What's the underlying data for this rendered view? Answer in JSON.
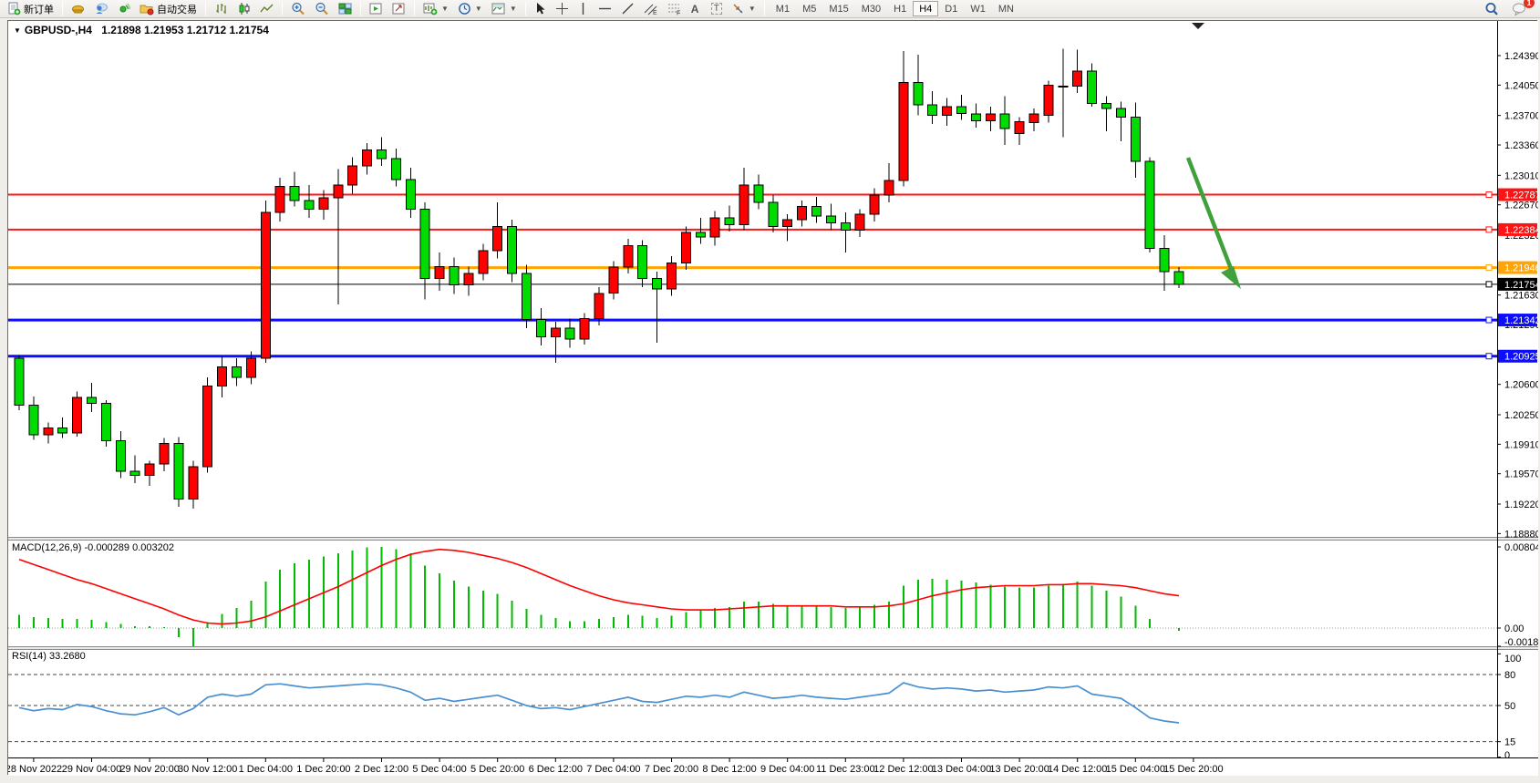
{
  "toolbar": {
    "new_order_label": "新订单",
    "autotrade_label": "自动交易",
    "icons": [
      "new-order-icon",
      "cap-icon",
      "community-icon",
      "broadcast-icon",
      "folder-icon",
      "ohlc-bars-icon",
      "candlestick-icon",
      "line-chart-icon",
      "zoom-in-icon",
      "zoom-out-icon",
      "tile-windows-icon",
      "indicator-list-icon",
      "data-window-icon",
      "new-chart-icon",
      "periods-clock-icon",
      "template-icon",
      "cursor-icon",
      "crosshair-icon",
      "vertical-line-icon",
      "horizontal-line-icon",
      "trendline-icon",
      "channel-icon",
      "fibonacci-icon",
      "text-icon",
      "text-label-icon",
      "arrows-icon",
      "search-icon",
      "chat-icon"
    ],
    "timeframes": [
      "M1",
      "M5",
      "M15",
      "M30",
      "H1",
      "H4",
      "D1",
      "W1",
      "MN"
    ],
    "active_timeframe": "H4",
    "notification_count": "1"
  },
  "chart": {
    "title": {
      "symbol": "GBPUSD-,H4",
      "open": "1.21898",
      "high": "1.21953",
      "low": "1.21712",
      "close": "1.21754"
    },
    "price_axis_ticks": [
      {
        "price": 1.2439,
        "label": "1.24390"
      },
      {
        "price": 1.2405,
        "label": "1.24050"
      },
      {
        "price": 1.237,
        "label": "1.23700"
      },
      {
        "price": 1.2336,
        "label": "1.23360"
      },
      {
        "price": 1.2301,
        "label": "1.23010"
      },
      {
        "price": 1.2267,
        "label": "1.22670"
      },
      {
        "price": 1.2232,
        "label": "1.22320"
      },
      {
        "price": 1.2163,
        "label": "1.21630"
      },
      {
        "price": 1.2129,
        "label": "1.21290"
      },
      {
        "price": 1.206,
        "label": "1.20600"
      },
      {
        "price": 1.2025,
        "label": "1.20250"
      },
      {
        "price": 1.1991,
        "label": "1.19910"
      },
      {
        "price": 1.1957,
        "label": "1.19570"
      },
      {
        "price": 1.1922,
        "label": "1.19220"
      },
      {
        "price": 1.1888,
        "label": "1.18880"
      }
    ],
    "hlines": [
      {
        "price": 1.22787,
        "label": "1.22787",
        "color": "#fe1414",
        "width": 2
      },
      {
        "price": 1.22384,
        "label": "1.22384",
        "color": "#fe1414",
        "width": 2
      },
      {
        "price": 1.21946,
        "label": "1.21946",
        "color": "#ffa400",
        "width": 3
      },
      {
        "price": 1.21754,
        "label": "1.21754",
        "color": "#000000",
        "width": 1
      },
      {
        "price": 1.21342,
        "label": "1.21342",
        "color": "#0d0dff",
        "width": 3
      },
      {
        "price": 1.20925,
        "label": "1.20925",
        "color": "#0d0dff",
        "width": 3
      }
    ],
    "time_axis_labels": [
      "28 Nov 2022",
      "29 Nov 04:00",
      "29 Nov 20:00",
      "30 Nov 12:00",
      "1 Dec 04:00",
      "1 Dec 20:00",
      "2 Dec 12:00",
      "5 Dec 04:00",
      "5 Dec 20:00",
      "6 Dec 12:00",
      "7 Dec 04:00",
      "7 Dec 20:00",
      "8 Dec 12:00",
      "9 Dec 04:00",
      "11 Dec 23:00",
      "12 Dec 12:00",
      "13 Dec 04:00",
      "13 Dec 20:00",
      "14 Dec 12:00",
      "15 Dec 04:00",
      "15 Dec 20:00"
    ],
    "arrow_color": "#3fa03c"
  },
  "chart_data": {
    "type": "candlestick",
    "title": "GBPUSD-,H4",
    "up_color": "#fe0000",
    "down_color": "#00dc00",
    "candles": [
      [
        1.209,
        1.2094,
        1.203,
        1.2036
      ],
      [
        1.2036,
        1.2046,
        1.1996,
        1.2002
      ],
      [
        1.2002,
        1.2016,
        1.1992,
        1.201
      ],
      [
        1.201,
        1.2022,
        1.1998,
        1.2004
      ],
      [
        1.2004,
        1.2052,
        1.2,
        1.2045
      ],
      [
        1.2045,
        1.2062,
        1.2028,
        1.2038
      ],
      [
        1.2038,
        1.2042,
        1.1988,
        1.1995
      ],
      [
        1.1995,
        1.2006,
        1.1952,
        1.196
      ],
      [
        1.196,
        1.1978,
        1.1946,
        1.1955
      ],
      [
        1.1955,
        1.1972,
        1.1943,
        1.1968
      ],
      [
        1.1968,
        1.1998,
        1.196,
        1.1992
      ],
      [
        1.1992,
        1.1999,
        1.1919,
        1.1928
      ],
      [
        1.1928,
        1.1972,
        1.1917,
        1.1965
      ],
      [
        1.1965,
        1.2068,
        1.1958,
        1.2058
      ],
      [
        1.2058,
        1.2092,
        1.2045,
        1.208
      ],
      [
        1.208,
        1.209,
        1.2058,
        1.2068
      ],
      [
        1.2068,
        1.2098,
        1.206,
        1.209
      ],
      [
        1.209,
        1.2272,
        1.2085,
        1.2258
      ],
      [
        1.2258,
        1.2298,
        1.2248,
        1.2288
      ],
      [
        1.2288,
        1.2305,
        1.2265,
        1.2272
      ],
      [
        1.2272,
        1.229,
        1.2252,
        1.2262
      ],
      [
        1.2262,
        1.2284,
        1.225,
        1.2275
      ],
      [
        1.2275,
        1.2308,
        1.2152,
        1.229
      ],
      [
        1.229,
        1.2322,
        1.228,
        1.2312
      ],
      [
        1.2312,
        1.2338,
        1.2302,
        1.233
      ],
      [
        1.233,
        1.2345,
        1.2312,
        1.232
      ],
      [
        1.232,
        1.2332,
        1.2288,
        1.2296
      ],
      [
        1.2296,
        1.231,
        1.2252,
        1.2262
      ],
      [
        1.2262,
        1.227,
        1.2158,
        1.2182
      ],
      [
        1.2182,
        1.2212,
        1.2168,
        1.2196
      ],
      [
        1.2196,
        1.2206,
        1.2164,
        1.2175
      ],
      [
        1.2175,
        1.2196,
        1.2162,
        1.2188
      ],
      [
        1.2188,
        1.2222,
        1.218,
        1.2214
      ],
      [
        1.2214,
        1.227,
        1.2205,
        1.2242
      ],
      [
        1.2242,
        1.225,
        1.2178,
        1.2188
      ],
      [
        1.2188,
        1.2198,
        1.2125,
        1.2135
      ],
      [
        1.2135,
        1.2148,
        1.2105,
        1.2115
      ],
      [
        1.2115,
        1.2132,
        1.2085,
        1.2125
      ],
      [
        1.2125,
        1.2136,
        1.2102,
        1.2112
      ],
      [
        1.2112,
        1.2142,
        1.2106,
        1.2136
      ],
      [
        1.2136,
        1.2172,
        1.2128,
        1.2165
      ],
      [
        1.2165,
        1.2202,
        1.2158,
        1.2195
      ],
      [
        1.2195,
        1.2228,
        1.2188,
        1.222
      ],
      [
        1.222,
        1.2226,
        1.2172,
        1.2182
      ],
      [
        1.2182,
        1.219,
        1.2108,
        1.217
      ],
      [
        1.217,
        1.2208,
        1.2162,
        1.22
      ],
      [
        1.22,
        1.2242,
        1.2192,
        1.2235
      ],
      [
        1.2235,
        1.2252,
        1.2222,
        1.223
      ],
      [
        1.223,
        1.226,
        1.222,
        1.2252
      ],
      [
        1.2252,
        1.2266,
        1.2236,
        1.2244
      ],
      [
        1.2244,
        1.231,
        1.2238,
        1.229
      ],
      [
        1.229,
        1.2302,
        1.2262,
        1.227
      ],
      [
        1.227,
        1.2278,
        1.2235,
        1.2242
      ],
      [
        1.2242,
        1.2256,
        1.2225,
        1.225
      ],
      [
        1.225,
        1.2272,
        1.2242,
        1.2265
      ],
      [
        1.2265,
        1.2276,
        1.2246,
        1.2254
      ],
      [
        1.2254,
        1.2268,
        1.2238,
        1.2246
      ],
      [
        1.2246,
        1.2258,
        1.2212,
        1.2238
      ],
      [
        1.2238,
        1.2262,
        1.223,
        1.2256
      ],
      [
        1.2256,
        1.2286,
        1.2248,
        1.2278
      ],
      [
        1.2278,
        1.2315,
        1.227,
        1.2295
      ],
      [
        1.2295,
        1.2444,
        1.2288,
        1.2408
      ],
      [
        1.2408,
        1.244,
        1.237,
        1.2382
      ],
      [
        1.2382,
        1.2398,
        1.236,
        1.237
      ],
      [
        1.237,
        1.239,
        1.2358,
        1.238
      ],
      [
        1.238,
        1.2394,
        1.2365,
        1.2372
      ],
      [
        1.2372,
        1.2384,
        1.2356,
        1.2364
      ],
      [
        1.2364,
        1.238,
        1.2352,
        1.2372
      ],
      [
        1.2372,
        1.2392,
        1.2336,
        1.2355
      ],
      [
        1.2349,
        1.2368,
        1.2336,
        1.2363
      ],
      [
        1.2362,
        1.2378,
        1.2352,
        1.2372
      ],
      [
        1.237,
        1.241,
        1.2362,
        1.2405
      ],
      [
        1.2403,
        1.2447,
        1.2345,
        1.2404
      ],
      [
        1.2404,
        1.2446,
        1.2396,
        1.2421
      ],
      [
        1.2421,
        1.243,
        1.238,
        1.2384
      ],
      [
        1.2384,
        1.2392,
        1.2352,
        1.2378
      ],
      [
        1.2378,
        1.2386,
        1.234,
        1.2368
      ],
      [
        1.2368,
        1.2385,
        1.2298,
        1.2317
      ],
      [
        1.2317,
        1.2322,
        1.2212,
        1.2217
      ],
      [
        1.2217,
        1.2232,
        1.2168,
        1.21898
      ],
      [
        1.21898,
        1.21953,
        1.21712,
        1.21754
      ]
    ],
    "macd": {
      "label": "MACD(12,26,9)",
      "main_value": "-0.000289",
      "signal_value": "0.003202",
      "axis_labels": [
        {
          "v": 0.008043,
          "label": "0.008043"
        },
        {
          "v": 0,
          "label": "0.00"
        },
        {
          "v": -0.001807,
          "label": "-0.001807"
        }
      ],
      "histogram": [
        0.0013,
        0.0011,
        0.001,
        0.0009,
        0.0009,
        0.0008,
        0.0006,
        0.0004,
        0.0002,
        0.0002,
        0.0001,
        -0.0009,
        -0.001807,
        0.0006,
        0.0014,
        0.002,
        0.0027,
        0.0046,
        0.0058,
        0.0064,
        0.0068,
        0.0071,
        0.0074,
        0.0077,
        0.008,
        0.008043,
        0.0078,
        0.0074,
        0.0062,
        0.0054,
        0.0047,
        0.0041,
        0.0037,
        0.0034,
        0.0027,
        0.0019,
        0.0013,
        0.001,
        0.0007,
        0.0007,
        0.0009,
        0.0011,
        0.0013,
        0.0012,
        0.001,
        0.0012,
        0.0016,
        0.0018,
        0.002,
        0.0021,
        0.0026,
        0.0026,
        0.0024,
        0.0022,
        0.0022,
        0.0022,
        0.0021,
        0.002,
        0.0021,
        0.0023,
        0.0026,
        0.0042,
        0.0048,
        0.0049,
        0.0048,
        0.0047,
        0.0045,
        0.0043,
        0.0041,
        0.004,
        0.004,
        0.0042,
        0.0044,
        0.0046,
        0.0042,
        0.0037,
        0.0031,
        0.0022,
        0.0009,
        0.0,
        -0.000289
      ],
      "signal": [
        0.0068,
        0.0063,
        0.0058,
        0.0053,
        0.0048,
        0.0044,
        0.0039,
        0.0034,
        0.0029,
        0.0024,
        0.0019,
        0.0013,
        0.0008,
        0.0005,
        0.0004,
        0.0005,
        0.0007,
        0.0011,
        0.0017,
        0.0023,
        0.0029,
        0.0035,
        0.0041,
        0.0048,
        0.0055,
        0.0062,
        0.0068,
        0.0073,
        0.0076,
        0.0078,
        0.0077,
        0.0075,
        0.0072,
        0.0069,
        0.0065,
        0.006,
        0.0054,
        0.0048,
        0.0042,
        0.0037,
        0.0032,
        0.0028,
        0.0025,
        0.0023,
        0.0021,
        0.0019,
        0.0018,
        0.0018,
        0.0018,
        0.0019,
        0.002,
        0.0021,
        0.0022,
        0.0022,
        0.0022,
        0.0022,
        0.0022,
        0.0021,
        0.0021,
        0.0021,
        0.0022,
        0.0024,
        0.0028,
        0.0032,
        0.0035,
        0.0038,
        0.004,
        0.0041,
        0.0042,
        0.0042,
        0.0042,
        0.0043,
        0.0043,
        0.0044,
        0.0044,
        0.0043,
        0.0042,
        0.004,
        0.0037,
        0.0034,
        0.003202
      ],
      "histogram_color": "#00bb00",
      "signal_color": "#ff0000"
    },
    "rsi": {
      "label": "RSI(14)",
      "value": "33.2680",
      "axis_labels": [
        {
          "v": 100,
          "label": "100"
        },
        {
          "v": 80,
          "label": "80"
        },
        {
          "v": 50,
          "label": "50"
        },
        {
          "v": 15,
          "label": "15"
        },
        {
          "v": 0,
          "label": "0"
        }
      ],
      "levels": [
        80,
        50,
        15
      ],
      "values": [
        48,
        45,
        47,
        46,
        51,
        49,
        45,
        42,
        41,
        44,
        48,
        41,
        47,
        58,
        61,
        59,
        61,
        70,
        71,
        69,
        67,
        68,
        69,
        70,
        71,
        70,
        67,
        63,
        55,
        57,
        54,
        56,
        58,
        60,
        55,
        50,
        47,
        48,
        46,
        49,
        52,
        55,
        58,
        54,
        53,
        56,
        59,
        58,
        60,
        58,
        63,
        60,
        57,
        58,
        60,
        58,
        57,
        56,
        58,
        60,
        62,
        72,
        68,
        66,
        67,
        66,
        64,
        65,
        63,
        64,
        65,
        68,
        67,
        69,
        61,
        59,
        57,
        48,
        38,
        35,
        33.268
      ],
      "line_color": "#4a90d0"
    }
  }
}
